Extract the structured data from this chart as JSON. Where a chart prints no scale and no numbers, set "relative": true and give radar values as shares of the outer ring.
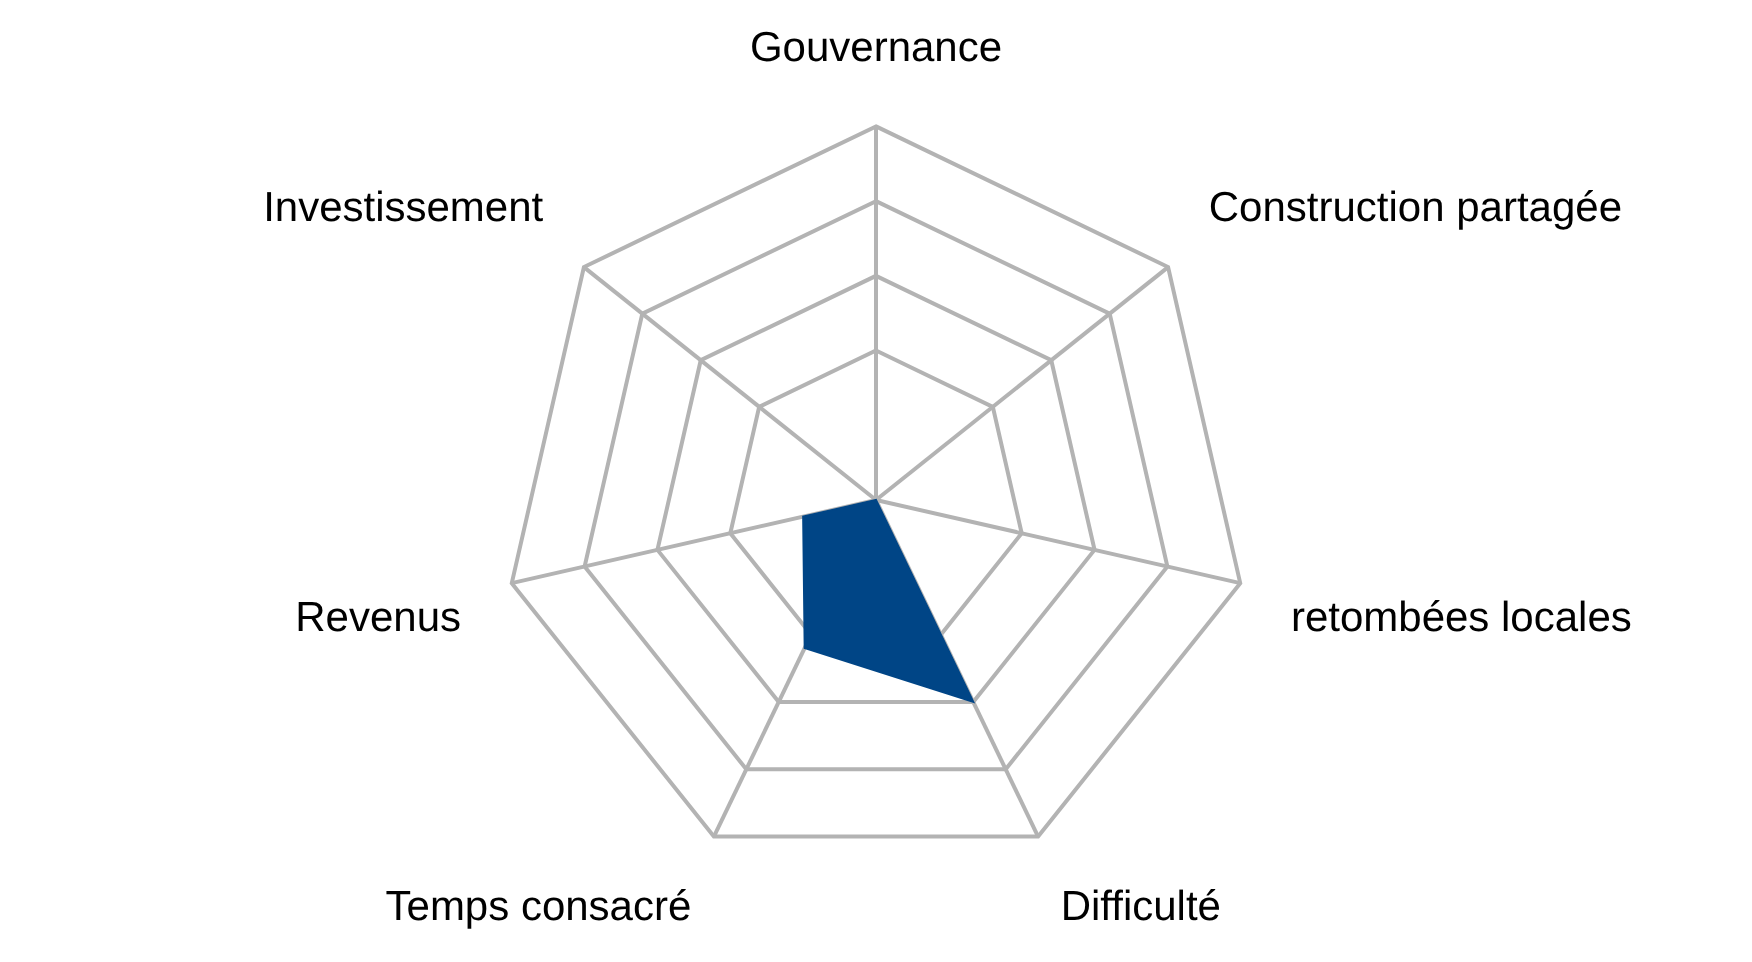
{
  "chart_data": {
    "type": "radar",
    "relative": true,
    "categories": [
      "Gouvernance",
      "Construction partagée",
      "retombées locales",
      "Difficulté",
      "Temps consacré",
      "Revenus",
      "Investissement"
    ],
    "series": [
      {
        "color": "#004586",
        "values": [
          0,
          0,
          0,
          0.6,
          0.44,
          0.2,
          0
        ]
      }
    ],
    "grid": true,
    "legend": false
  }
}
